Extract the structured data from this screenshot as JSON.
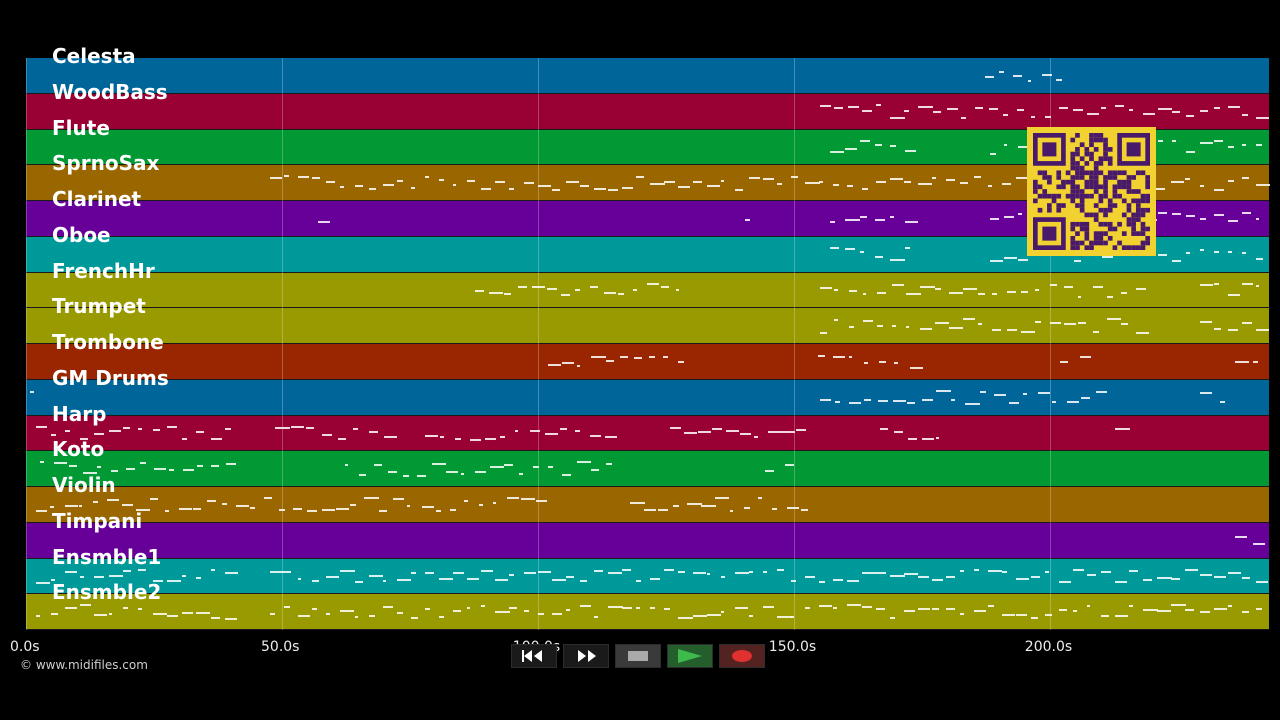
{
  "tracks": [
    {
      "name": "Celesta",
      "color": "#006699"
    },
    {
      "name": "WoodBass",
      "color": "#990033"
    },
    {
      "name": "Flute",
      "color": "#009933"
    },
    {
      "name": "SprnoSax",
      "color": "#996600"
    },
    {
      "name": "Clarinet",
      "color": "#660099"
    },
    {
      "name": "Oboe",
      "color": "#009999"
    },
    {
      "name": "FrenchHr",
      "color": "#999900"
    },
    {
      "name": "Trumpet",
      "color": "#999900"
    },
    {
      "name": "Trombone",
      "color": "#992600"
    },
    {
      "name": "GM Drums",
      "color": "#006699"
    },
    {
      "name": "Harp",
      "color": "#990033"
    },
    {
      "name": "Koto",
      "color": "#009933"
    },
    {
      "name": "Violin",
      "color": "#996600"
    },
    {
      "name": "Timpani",
      "color": "#660099"
    },
    {
      "name": "Ensmble1",
      "color": "#009999"
    },
    {
      "name": "Ensmble2",
      "color": "#999900"
    }
  ],
  "timeline": {
    "ticks": [
      "0.0s",
      "50.0s",
      "100.0s",
      "150.0s",
      "200.0s"
    ]
  },
  "copyright": "© www.midifiles.com",
  "transport": {
    "buttons": [
      {
        "name": "rewind-button",
        "icon": "rewind-icon"
      },
      {
        "name": "fast-forward-button",
        "icon": "fast-forward-icon"
      },
      {
        "name": "stop-button",
        "icon": "stop-icon"
      },
      {
        "name": "play-button",
        "icon": "play-icon"
      },
      {
        "name": "record-button",
        "icon": "record-icon"
      }
    ]
  },
  "colors": {
    "background": "#000000",
    "qr_background": "#f2d231",
    "qr_foreground": "#4a1a6a",
    "play": "#3dbb4a",
    "record": "#e03030"
  }
}
